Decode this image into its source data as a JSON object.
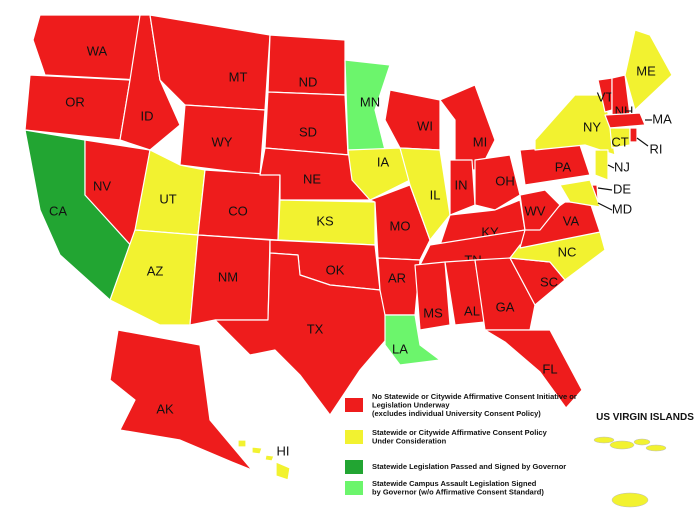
{
  "states": [
    {
      "label": "WA",
      "color": "#ee1c1c"
    },
    {
      "label": "OR",
      "color": "#ee1c1c"
    },
    {
      "label": "CA",
      "color": "#22a532"
    },
    {
      "label": "NV",
      "color": "#ee1c1c"
    },
    {
      "label": "ID",
      "color": "#ee1c1c"
    },
    {
      "label": "MT",
      "color": "#ee1c1c"
    },
    {
      "label": "WY",
      "color": "#ee1c1c"
    },
    {
      "label": "UT",
      "color": "#f2f230"
    },
    {
      "label": "AZ",
      "color": "#f2f230"
    },
    {
      "label": "CO",
      "color": "#ee1c1c"
    },
    {
      "label": "NM",
      "color": "#ee1c1c"
    },
    {
      "label": "ND",
      "color": "#ee1c1c"
    },
    {
      "label": "SD",
      "color": "#ee1c1c"
    },
    {
      "label": "NE",
      "color": "#ee1c1c"
    },
    {
      "label": "KS",
      "color": "#f2f230"
    },
    {
      "label": "OK",
      "color": "#ee1c1c"
    },
    {
      "label": "TX",
      "color": "#ee1c1c"
    },
    {
      "label": "MN",
      "color": "#6cf56c"
    },
    {
      "label": "IA",
      "color": "#f2f230"
    },
    {
      "label": "MO",
      "color": "#ee1c1c"
    },
    {
      "label": "AR",
      "color": "#ee1c1c"
    },
    {
      "label": "LA",
      "color": "#6cf56c"
    },
    {
      "label": "WI",
      "color": "#ee1c1c"
    },
    {
      "label": "IL",
      "color": "#f2f230"
    },
    {
      "label": "MI",
      "color": "#ee1c1c"
    },
    {
      "label": "IN",
      "color": "#ee1c1c"
    },
    {
      "label": "OH",
      "color": "#ee1c1c"
    },
    {
      "label": "KY",
      "color": "#ee1c1c"
    },
    {
      "label": "TN",
      "color": "#ee1c1c"
    },
    {
      "label": "MS",
      "color": "#ee1c1c"
    },
    {
      "label": "AL",
      "color": "#ee1c1c"
    },
    {
      "label": "GA",
      "color": "#ee1c1c"
    },
    {
      "label": "FL",
      "color": "#ee1c1c"
    },
    {
      "label": "SC",
      "color": "#ee1c1c"
    },
    {
      "label": "NC",
      "color": "#f2f230"
    },
    {
      "label": "VA",
      "color": "#ee1c1c"
    },
    {
      "label": "WV",
      "color": "#ee1c1c"
    },
    {
      "label": "PA",
      "color": "#ee1c1c"
    },
    {
      "label": "NY",
      "color": "#f2f230"
    },
    {
      "label": "VT",
      "color": "#ee1c1c"
    },
    {
      "label": "NH",
      "color": "#ee1c1c"
    },
    {
      "label": "ME",
      "color": "#f2f230"
    },
    {
      "label": "MA",
      "color": "#ee1c1c"
    },
    {
      "label": "CT",
      "color": "#f2f230"
    },
    {
      "label": "RI",
      "color": "#ee1c1c"
    },
    {
      "label": "NJ",
      "color": "#f2f230"
    },
    {
      "label": "DE",
      "color": "#ee1c1c"
    },
    {
      "label": "MD",
      "color": "#f2f230"
    },
    {
      "label": "AK",
      "color": "#ee1c1c"
    },
    {
      "label": "HI",
      "color": "#f2f230"
    }
  ],
  "territory": {
    "label": "US VIRGIN ISLANDS",
    "color": "#f2f230"
  },
  "legend": [
    {
      "color": "#ee1c1c",
      "lines": [
        "No Statewide or Citywide Affirmative Consent Initiative or",
        "Legislation Underway",
        "(excludes individual University Consent Policy)"
      ]
    },
    {
      "color": "#f2f230",
      "lines": [
        "Statewide or Citywide Affirmative Consent Policy",
        "Under Consideration"
      ]
    },
    {
      "color": "#22a532",
      "lines": [
        "Statewide Legislation Passed and Signed by Governor"
      ]
    },
    {
      "color": "#6cf56c",
      "lines": [
        "Statewide Campus Assault Legislation Signed",
        "by Governor (w/o Affirmative Consent Standard)"
      ]
    }
  ]
}
